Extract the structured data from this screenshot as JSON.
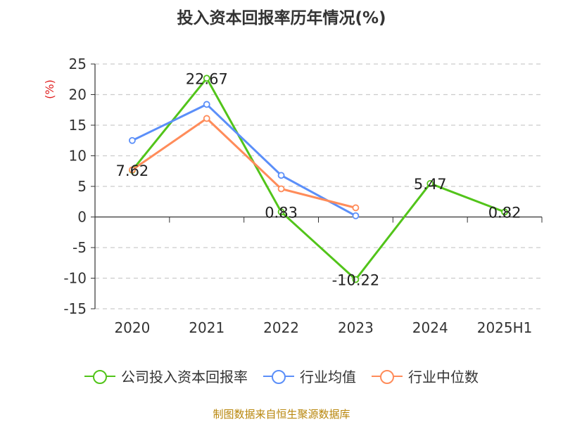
{
  "chart_data": {
    "type": "line",
    "title": "投入资本回报率历年情况(%)",
    "ylabel": "(%)",
    "categories": [
      "2020",
      "2021",
      "2022",
      "2023",
      "2024",
      "2025H1"
    ],
    "ylim": [
      -15,
      25
    ],
    "yticks": [
      25,
      20,
      15,
      10,
      5,
      0,
      -5,
      -10,
      -15
    ],
    "grid": true,
    "legend_position": "bottom",
    "series": [
      {
        "name": "公司投入资本回报率",
        "color": "#52c41a",
        "values": [
          7.62,
          22.67,
          0.83,
          -10.22,
          5.47,
          0.82
        ],
        "labels": [
          "7.62",
          "22.67",
          "0.83",
          "-10.22",
          "5.47",
          "0.82"
        ]
      },
      {
        "name": "行业均值",
        "color": "#5b8ff9",
        "values": [
          12.5,
          18.4,
          6.8,
          0.2,
          null,
          null
        ]
      },
      {
        "name": "行业中位数",
        "color": "#ff8c5a",
        "values": [
          7.7,
          16.1,
          4.6,
          1.5,
          null,
          null
        ]
      }
    ]
  },
  "source": "制图数据来自恒生聚源数据库"
}
